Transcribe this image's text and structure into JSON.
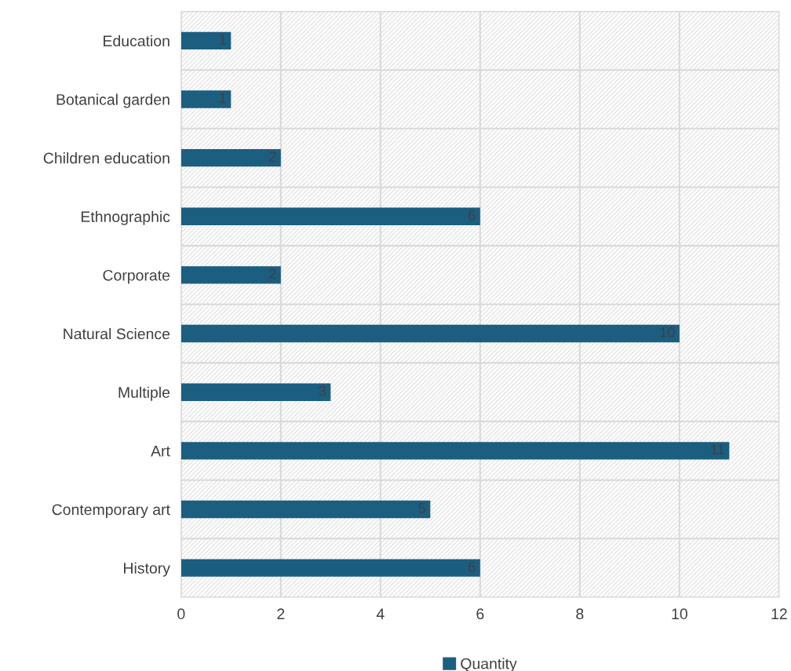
{
  "chart_data": {
    "type": "bar",
    "orientation": "horizontal",
    "categories": [
      "Education",
      "Botanical garden",
      "Children education",
      "Ethnographic",
      "Corporate",
      "Natural Science",
      "Multiple",
      "Art",
      "Contemporary art",
      "History"
    ],
    "series": [
      {
        "name": "Quantity",
        "color": "#1b5e80",
        "values": [
          1,
          1,
          2,
          6,
          2,
          10,
          3,
          11,
          5,
          6
        ]
      }
    ],
    "xlim": [
      0,
      12
    ],
    "xticks": [
      0,
      2,
      4,
      6,
      8,
      10,
      12
    ],
    "grid": true,
    "legend": "bottom",
    "data_labels": true
  }
}
